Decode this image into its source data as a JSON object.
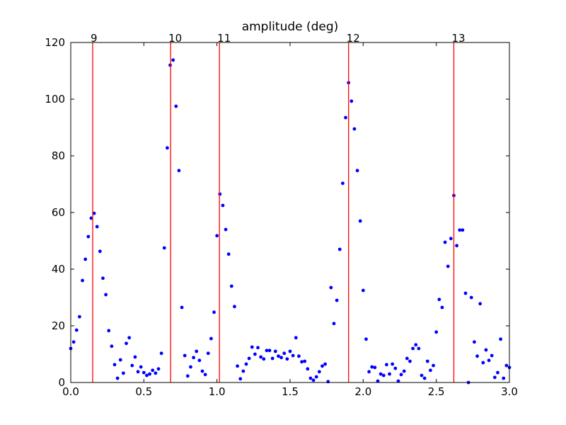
{
  "chart_data": {
    "type": "scatter",
    "title": "amplitude (deg)",
    "x": [
      0.0,
      0.02,
      0.04,
      0.06,
      0.08,
      0.1,
      0.12,
      0.14,
      0.16,
      0.18,
      0.2,
      0.22,
      0.24,
      0.26,
      0.28,
      0.3,
      0.32,
      0.34,
      0.36,
      0.38,
      0.4,
      0.42,
      0.44,
      0.46,
      0.48,
      0.5,
      0.52,
      0.54,
      0.56,
      0.58,
      0.6,
      0.62,
      0.64,
      0.66,
      0.68,
      0.7,
      0.72,
      0.74,
      0.76,
      0.78,
      0.8,
      0.82,
      0.84,
      0.86,
      0.88,
      0.9,
      0.92,
      0.94,
      0.96,
      0.98,
      1.0,
      1.02,
      1.04,
      1.06,
      1.08,
      1.1,
      1.12,
      1.14,
      1.16,
      1.18,
      1.2,
      1.22,
      1.24,
      1.26,
      1.28,
      1.3,
      1.32,
      1.34,
      1.36,
      1.38,
      1.4,
      1.42,
      1.44,
      1.46,
      1.48,
      1.5,
      1.52,
      1.54,
      1.56,
      1.58,
      1.6,
      1.62,
      1.64,
      1.66,
      1.68,
      1.7,
      1.72,
      1.74,
      1.76,
      1.78,
      1.8,
      1.82,
      1.84,
      1.86,
      1.88,
      1.9,
      1.92,
      1.94,
      1.96,
      1.98,
      2.0,
      2.02,
      2.04,
      2.06,
      2.08,
      2.1,
      2.12,
      2.14,
      2.16,
      2.18,
      2.2,
      2.22,
      2.24,
      2.26,
      2.28,
      2.3,
      2.32,
      2.34,
      2.36,
      2.38,
      2.4,
      2.42,
      2.44,
      2.46,
      2.48,
      2.5,
      2.52,
      2.54,
      2.56,
      2.58,
      2.6,
      2.62,
      2.64,
      2.66,
      2.68,
      2.7,
      2.72,
      2.74,
      2.76,
      2.78,
      2.8,
      2.82,
      2.84,
      2.86,
      2.88,
      2.9,
      2.92,
      2.94,
      2.96,
      2.98,
      3.0
    ],
    "values": [
      12,
      14.3,
      18.5,
      23.2,
      36,
      43.5,
      51.5,
      58,
      59.7,
      55,
      46.3,
      36.8,
      31,
      18.3,
      12.8,
      6.3,
      1.5,
      8,
      3.3,
      13.8,
      15.8,
      6,
      9,
      3.8,
      5.5,
      3.5,
      2.5,
      3,
      4.3,
      3.3,
      4.8,
      10.3,
      47.5,
      82.8,
      112,
      113.8,
      97.5,
      74.8,
      26.5,
      9.5,
      2.3,
      5.5,
      8.8,
      11,
      7.8,
      4,
      2.8,
      10.3,
      15.5,
      24.8,
      51.8,
      66.5,
      62.5,
      54,
      45.3,
      34,
      26.8,
      5.8,
      1.3,
      4,
      6.5,
      8.5,
      12.5,
      10,
      12.3,
      9,
      8.3,
      11.3,
      11.3,
      8.5,
      11,
      9.3,
      8.8,
      10.3,
      8.3,
      11,
      9.5,
      15.8,
      9.3,
      7.3,
      7.5,
      4.8,
      1.5,
      0.8,
      2,
      3.8,
      5.8,
      6.5,
      0.3,
      33.5,
      20.8,
      29,
      47,
      70.3,
      93.5,
      105.8,
      99.3,
      89.5,
      74.8,
      57,
      32.5,
      15.3,
      3.8,
      5.5,
      5.3,
      0.5,
      3,
      2.5,
      6.3,
      3,
      6.5,
      5,
      0.5,
      2.8,
      4,
      8.5,
      7.5,
      12,
      13.3,
      12,
      2.5,
      1.5,
      7.5,
      4.3,
      6,
      17.8,
      29.3,
      26.5,
      49.5,
      41,
      50.8,
      66,
      48.3,
      53.8,
      53.8,
      31.5,
      0,
      30,
      14.3,
      9.3,
      27.8,
      7,
      11.5,
      7.8,
      9.5,
      1.8,
      3.5,
      15.3,
      1.5,
      6,
      5.3
    ],
    "color": "#0000ff",
    "vlines": [
      {
        "x": 0.15,
        "label": "9"
      },
      {
        "x": 0.683,
        "label": "10"
      },
      {
        "x": 1.017,
        "label": "11"
      },
      {
        "x": 1.9,
        "label": "12"
      },
      {
        "x": 2.62,
        "label": "13"
      }
    ],
    "vline_color": "#ff0000",
    "xlim": [
      0,
      3
    ],
    "ylim": [
      0,
      120
    ],
    "xticks": [
      {
        "value": 0,
        "label": "0.0"
      },
      {
        "value": 0.5,
        "label": "0.5"
      },
      {
        "value": 1,
        "label": "1.0"
      },
      {
        "value": 1.5,
        "label": "1.5"
      },
      {
        "value": 2,
        "label": "2.0"
      },
      {
        "value": 2.5,
        "label": "2.5"
      },
      {
        "value": 3,
        "label": "3.0"
      }
    ],
    "yticks": [
      0,
      20,
      40,
      60,
      80,
      100,
      120
    ]
  }
}
